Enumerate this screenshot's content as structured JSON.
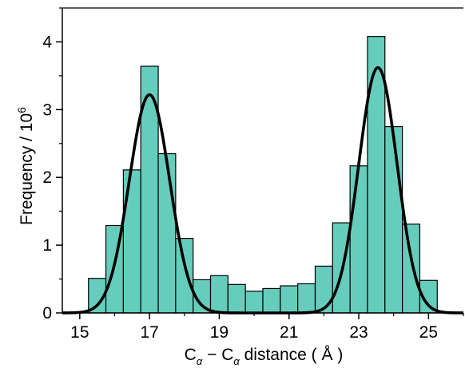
{
  "chart_data": {
    "type": "bar",
    "title": "",
    "xlabel": {
      "main": "C",
      "sub": "α",
      "dash": " − ",
      "rest": " distance ( Å )"
    },
    "ylabel": {
      "main": "Frequency / 10",
      "sup": "6"
    },
    "xlim": [
      14.5,
      26
    ],
    "ylim": [
      0,
      4.5
    ],
    "x_ticks": [
      15,
      17,
      19,
      21,
      23,
      25
    ],
    "y_ticks": [
      0,
      1,
      2,
      3,
      4
    ],
    "grid": false,
    "legend": "none",
    "colors": {
      "bar_fill": "#66cdbd",
      "bar_edge": "#000000",
      "fit_line": "#000000"
    },
    "bin_width": 0.5,
    "bins": [
      {
        "x0": 15.25,
        "x1": 15.75,
        "y": 0.51
      },
      {
        "x0": 15.75,
        "x1": 16.25,
        "y": 1.29
      },
      {
        "x0": 16.25,
        "x1": 16.75,
        "y": 2.11
      },
      {
        "x0": 16.75,
        "x1": 17.25,
        "y": 3.64
      },
      {
        "x0": 17.25,
        "x1": 17.75,
        "y": 2.35
      },
      {
        "x0": 17.75,
        "x1": 18.25,
        "y": 1.1
      },
      {
        "x0": 18.25,
        "x1": 18.75,
        "y": 0.49
      },
      {
        "x0": 18.75,
        "x1": 19.25,
        "y": 0.55
      },
      {
        "x0": 19.25,
        "x1": 19.75,
        "y": 0.42
      },
      {
        "x0": 19.75,
        "x1": 20.25,
        "y": 0.32
      },
      {
        "x0": 20.25,
        "x1": 20.75,
        "y": 0.36
      },
      {
        "x0": 20.75,
        "x1": 21.25,
        "y": 0.4
      },
      {
        "x0": 21.25,
        "x1": 21.75,
        "y": 0.43
      },
      {
        "x0": 21.75,
        "x1": 22.25,
        "y": 0.69
      },
      {
        "x0": 22.25,
        "x1": 22.75,
        "y": 1.33
      },
      {
        "x0": 22.75,
        "x1": 23.25,
        "y": 2.17
      },
      {
        "x0": 23.25,
        "x1": 23.75,
        "y": 4.08
      },
      {
        "x0": 23.75,
        "x1": 24.25,
        "y": 2.75
      },
      {
        "x0": 24.25,
        "x1": 24.75,
        "y": 1.31
      },
      {
        "x0": 24.75,
        "x1": 25.25,
        "y": 0.48
      }
    ],
    "fit": {
      "type": "sum of two gaussians",
      "components": [
        {
          "mean": 17.0,
          "sigma": 0.58,
          "amplitude": 3.22
        },
        {
          "mean": 23.55,
          "sigma": 0.55,
          "amplitude": 3.62
        }
      ]
    }
  }
}
